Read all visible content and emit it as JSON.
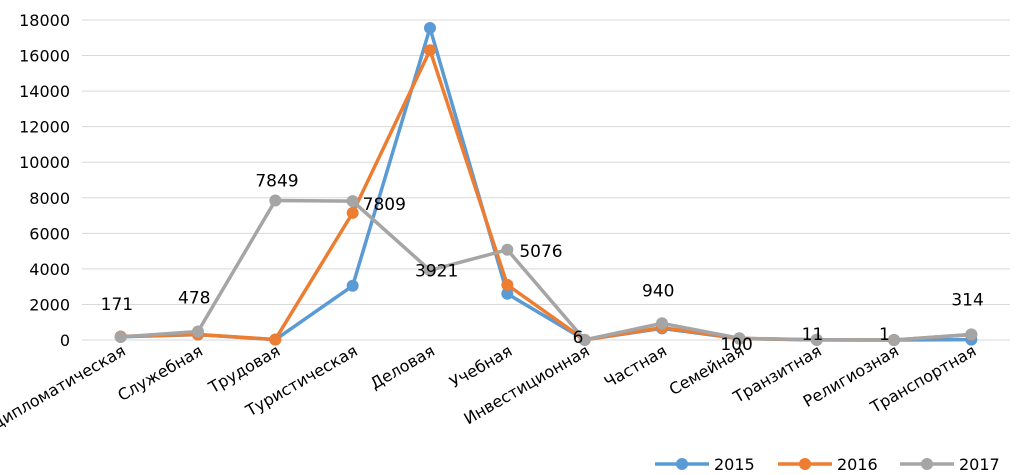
{
  "chart_data": {
    "type": "line",
    "title": "",
    "xlabel": "",
    "ylabel": "",
    "ylim": [
      0,
      18000
    ],
    "yticks": [
      0,
      2000,
      4000,
      6000,
      8000,
      10000,
      12000,
      14000,
      16000,
      18000
    ],
    "grid": "horizontal",
    "legend_position": "bottom-right",
    "categories": [
      "Дипломатическая",
      "Служебная",
      "Трудовая",
      "Туристическая",
      "Деловая",
      "Учебная",
      "Инвестиционная",
      "Частная",
      "Семейная",
      "Транзитная",
      "Религиозная",
      "Транспортная"
    ],
    "series": [
      {
        "name": "2015",
        "color": "#5B9BD5",
        "values": [
          180,
          300,
          20,
          3050,
          17550,
          2600,
          10,
          650,
          80,
          10,
          1,
          20
        ]
      },
      {
        "name": "2016",
        "color": "#ED7D31",
        "values": [
          200,
          310,
          30,
          7150,
          16300,
          3100,
          8,
          700,
          90,
          10,
          1,
          300
        ]
      },
      {
        "name": "2017",
        "color": "#A5A5A5",
        "values": [
          171,
          478,
          7849,
          7809,
          3921,
          5076,
          6,
          940,
          100,
          11,
          1,
          314
        ]
      }
    ],
    "data_labels": [
      "171",
      "478",
      "7849",
      "7809",
      "3921",
      "5076",
      "6",
      "940",
      "100",
      "11",
      "1",
      "314"
    ]
  }
}
